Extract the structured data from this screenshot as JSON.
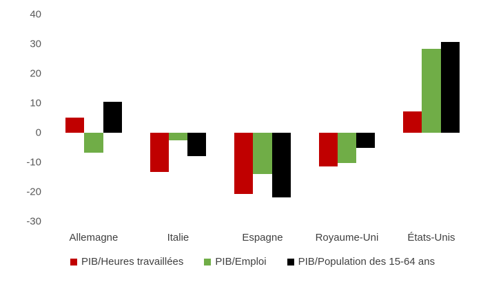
{
  "chart_data": {
    "type": "bar",
    "title": "",
    "xlabel": "",
    "ylabel": "",
    "ylim": [
      -30,
      40
    ],
    "yticks": [
      40,
      30,
      20,
      10,
      0,
      -10,
      -20,
      -30
    ],
    "grid": false,
    "legend_position": "bottom",
    "categories": [
      "Allemagne",
      "Italie",
      "Espagne",
      "Royaume-Uni",
      "États-Unis"
    ],
    "series": [
      {
        "name": "PIB/Heures travaillées",
        "color": "#C00000",
        "values": [
          5.1,
          -13.3,
          -20.6,
          -11.4,
          7.2
        ]
      },
      {
        "name": "PIB/Emploi",
        "color": "#70AD47",
        "values": [
          -6.7,
          -2.5,
          -14.0,
          -10.2,
          28.4
        ]
      },
      {
        "name": "PIB/Population des 15-64 ans",
        "color": "#000000",
        "values": [
          10.4,
          -7.8,
          -21.8,
          -5.2,
          30.7
        ]
      }
    ]
  }
}
